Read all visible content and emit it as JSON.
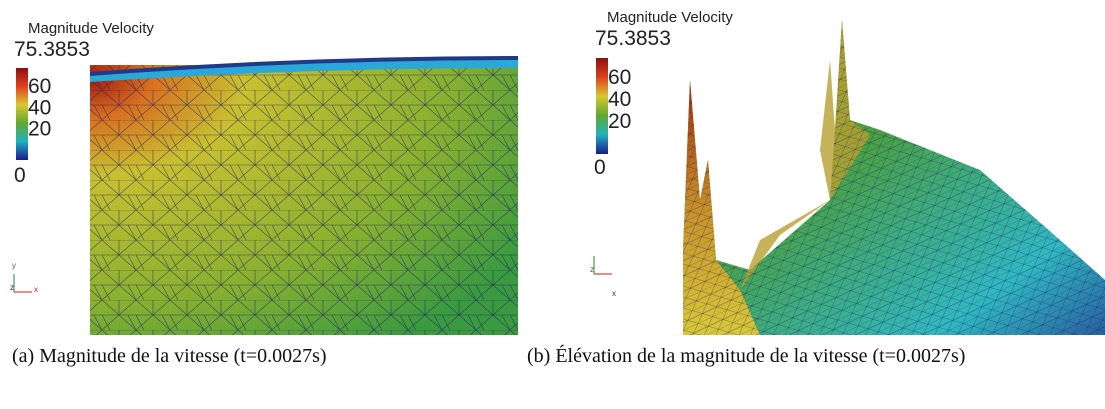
{
  "figure": {
    "panels": [
      {
        "label": "(a)",
        "caption": "Magnitude de la vitesse (t=0.0027s)",
        "legend": {
          "title": "Magnitude Velocity",
          "max": "75.3853",
          "ticks": [
            "60",
            "40",
            "20",
            "0"
          ]
        },
        "axes": [
          "y",
          "z",
          "x"
        ]
      },
      {
        "label": "(b)",
        "caption": "Élévation de la magnitude de la vitesse (t=0.0027s)",
        "legend": {
          "title": "Magnitude Velocity",
          "max": "75.3853",
          "ticks": [
            "60",
            "40",
            "20",
            "0"
          ]
        },
        "axes": [
          "z",
          "x"
        ]
      }
    ]
  }
}
